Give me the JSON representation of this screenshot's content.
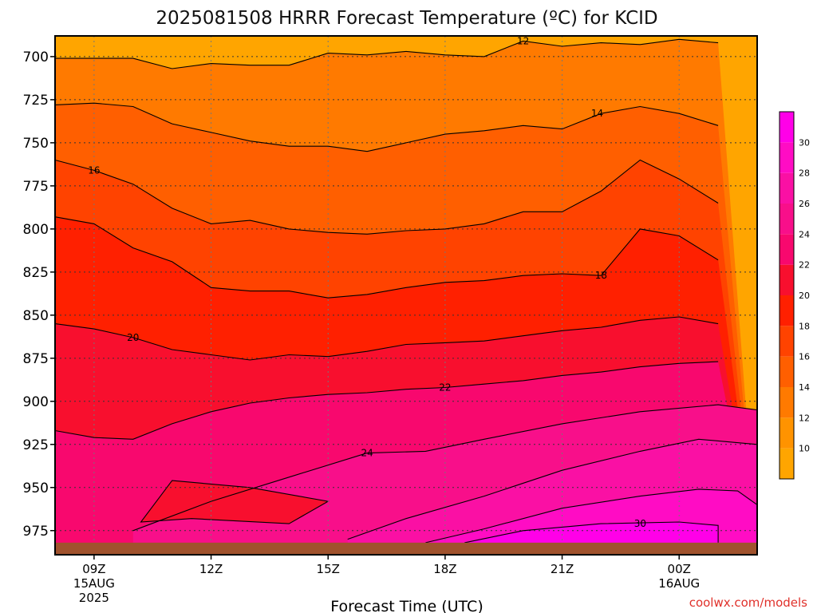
{
  "chart_data": {
    "type": "contour-time-height",
    "title": "2025081508 HRRR Forecast Temperature (ºC) for KCID",
    "xlabel": "Forecast Time (UTC)",
    "ylabel": "",
    "x_ticks": [
      {
        "t": 0,
        "label": "09Z",
        "sub1": "15AUG",
        "sub2": "2025"
      },
      {
        "t": 3,
        "label": "12Z",
        "sub1": "",
        "sub2": ""
      },
      {
        "t": 6,
        "label": "15Z",
        "sub1": "",
        "sub2": ""
      },
      {
        "t": 9,
        "label": "18Z",
        "sub1": "",
        "sub2": ""
      },
      {
        "t": 12,
        "label": "21Z",
        "sub1": "",
        "sub2": ""
      },
      {
        "t": 15,
        "label": "00Z",
        "sub1": "16AUG",
        "sub2": ""
      }
    ],
    "xlim_hours": [
      -1,
      17
    ],
    "y_levels_hPa": [
      700,
      725,
      750,
      775,
      800,
      825,
      850,
      875,
      900,
      925,
      950,
      975
    ],
    "y_tick_labels": [
      "700",
      "725",
      "750",
      "775",
      "800",
      "825",
      "850",
      "875",
      "900",
      "925",
      "950",
      "975"
    ],
    "ylim_hPa": [
      688,
      989
    ],
    "surface_pressure_hPa": 982,
    "grid": true,
    "colorbar": {
      "bounds": [
        8,
        32
      ],
      "tick_values": [
        10,
        12,
        14,
        16,
        18,
        20,
        22,
        24,
        26,
        28,
        30
      ],
      "tick_labels": [
        "10",
        "12",
        "14",
        "16",
        "18",
        "20",
        "22",
        "24",
        "26",
        "28",
        "30"
      ],
      "colors": [
        "#ffa500",
        "#ff9300",
        "#ff7a00",
        "#ff5f00",
        "#ff4300",
        "#ff2000",
        "#f80f2e",
        "#f8086e",
        "#f80f8a",
        "#fa10a4",
        "#ff0cc4",
        "#ff00e8"
      ]
    },
    "contours": [
      {
        "level": 12,
        "label": "12",
        "label_t": 11.0,
        "pressure": [
          701,
          701,
          701,
          707,
          704,
          705,
          705,
          698,
          699,
          697,
          699,
          700,
          691,
          694,
          692,
          693,
          690,
          692
        ]
      },
      {
        "level": 14,
        "label": "14",
        "label_t": 12.9,
        "pressure": [
          728,
          727,
          729,
          739,
          744,
          749,
          752,
          752,
          755,
          750,
          745,
          743,
          740,
          742,
          733,
          729,
          733,
          740
        ]
      },
      {
        "level": 16,
        "label": "16",
        "label_t": 0.0,
        "pressure": [
          760,
          766,
          774,
          788,
          797,
          795,
          800,
          802,
          803,
          801,
          800,
          797,
          790,
          790,
          778,
          760,
          771,
          785
        ]
      },
      {
        "level": 18,
        "label": "18",
        "label_t": 13.0,
        "pressure": [
          793,
          797,
          811,
          819,
          834,
          836,
          836,
          840,
          838,
          834,
          831,
          830,
          827,
          826,
          827,
          800,
          804,
          818
        ]
      },
      {
        "level": 20,
        "label": "20",
        "label_t": 1.0,
        "pressure": [
          855,
          858,
          863,
          870,
          873,
          876,
          873,
          874,
          871,
          867,
          866,
          865,
          862,
          859,
          857,
          853,
          851,
          855
        ]
      },
      {
        "level": 22,
        "label": "22",
        "label_t": 9.0,
        "pressure": [
          917,
          921,
          922,
          913,
          906,
          901,
          898,
          896,
          895,
          893,
          892,
          890,
          888,
          885,
          883,
          880,
          878,
          877
        ]
      },
      {
        "level": 24,
        "label": "24",
        "label_t": 7.0,
        "pressure": [
          null,
          null,
          null,
          null,
          null,
          null,
          null,
          null,
          null,
          null,
          null,
          null,
          null,
          null,
          null,
          null,
          null,
          null
        ]
      },
      {
        "level": 30,
        "label": "30",
        "label_t": 14.0,
        "pressure": [
          null,
          null,
          null,
          null,
          null,
          null,
          null,
          null,
          null,
          null,
          null,
          null,
          null,
          null,
          null,
          null,
          null,
          null
        ]
      }
    ],
    "credit": "coolwx.com/models"
  }
}
